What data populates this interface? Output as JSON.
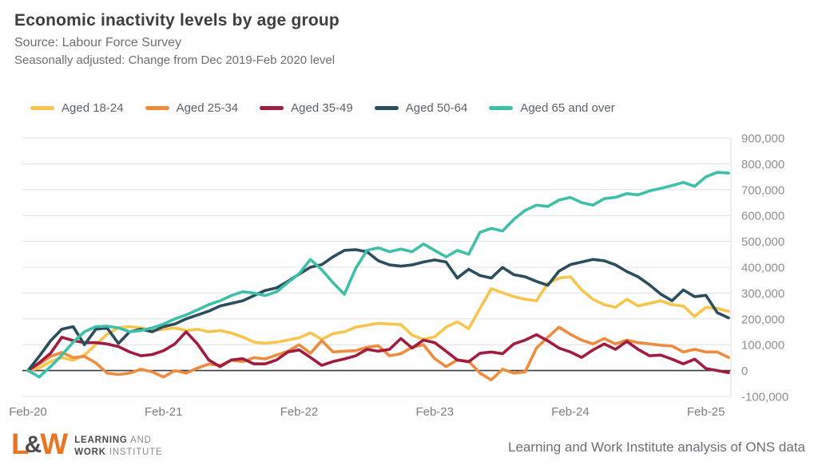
{
  "header": {
    "title": "Economic inactivity levels by age group",
    "source": "Source: Labour Force Survey",
    "note": "Seasonally adjusted: Change from Dec 2019-Feb 2020 level"
  },
  "footer": {
    "logo_l": "L",
    "logo_amp": "&",
    "logo_w": "W",
    "logo_line1_bold": "LEARNING",
    "logo_line1_rest": " AND",
    "logo_line2_bold": "WORK",
    "logo_line2_rest": " INSTITUTE",
    "attribution": "Learning and Work Institute analysis of ONS data"
  },
  "colors": {
    "aged_18_24": "#F7C54D",
    "aged_25_34": "#ED8B3F",
    "aged_35_49": "#A01D40",
    "aged_50_64": "#2B4D5C",
    "aged_65_over": "#3EBFA7",
    "zero_line": "#3b3b3b",
    "grid_line": "#e4e4e4",
    "logo_orange": "#e87424"
  },
  "chart_data": {
    "type": "line",
    "title": "Economic inactivity levels by age group",
    "subtitle": "Seasonally adjusted: Change from Dec 2019-Feb 2020 level",
    "unit": "people (change from Dec 2019-Feb 2020 level)",
    "grid": "horizontal",
    "legend_position": "top",
    "y_axis_side": "right",
    "ylim": [
      -100000,
      900000
    ],
    "y_ticks": [
      {
        "value": 900000,
        "label": "900,000"
      },
      {
        "value": 800000,
        "label": "800,000"
      },
      {
        "value": 700000,
        "label": "700,000"
      },
      {
        "value": 600000,
        "label": "600,000"
      },
      {
        "value": 500000,
        "label": "500,000"
      },
      {
        "value": 400000,
        "label": "400,000"
      },
      {
        "value": 300000,
        "label": "300,000"
      },
      {
        "value": 200000,
        "label": "200,000"
      },
      {
        "value": 100000,
        "label": "100,000"
      },
      {
        "value": 0,
        "label": "0"
      },
      {
        "value": -100000,
        "label": "-100,000"
      }
    ],
    "x": [
      "Feb-20",
      "Mar-20",
      "Apr-20",
      "May-20",
      "Jun-20",
      "Jul-20",
      "Aug-20",
      "Sep-20",
      "Oct-20",
      "Nov-20",
      "Dec-20",
      "Jan-21",
      "Feb-21",
      "Mar-21",
      "Apr-21",
      "May-21",
      "Jun-21",
      "Jul-21",
      "Aug-21",
      "Sep-21",
      "Oct-21",
      "Nov-21",
      "Dec-21",
      "Jan-22",
      "Feb-22",
      "Mar-22",
      "Apr-22",
      "May-22",
      "Jun-22",
      "Jul-22",
      "Aug-22",
      "Sep-22",
      "Oct-22",
      "Nov-22",
      "Dec-22",
      "Jan-23",
      "Feb-23",
      "Mar-23",
      "Apr-23",
      "May-23",
      "Jun-23",
      "Jul-23",
      "Aug-23",
      "Sep-23",
      "Oct-23",
      "Nov-23",
      "Dec-23",
      "Jan-24",
      "Feb-24",
      "Mar-24",
      "Apr-24",
      "May-24",
      "Jun-24",
      "Jul-24",
      "Aug-24",
      "Sep-24",
      "Oct-24",
      "Nov-24",
      "Dec-24",
      "Jan-25",
      "Feb-25",
      "Mar-25",
      "Apr-25"
    ],
    "x_tick_indices": [
      0,
      12,
      24,
      36,
      48,
      60
    ],
    "x_tick_labels": [
      "Feb-20",
      "Feb-21",
      "Feb-22",
      "Feb-23",
      "Feb-24",
      "Feb-25"
    ],
    "series": [
      {
        "name": "Aged 18-24",
        "color": "#F7C54D",
        "values": [
          0,
          10000,
          35000,
          50000,
          40000,
          60000,
          100000,
          140000,
          165000,
          170000,
          165000,
          155000,
          160000,
          165000,
          155000,
          160000,
          150000,
          155000,
          145000,
          130000,
          110000,
          106000,
          110000,
          118000,
          127000,
          146000,
          121000,
          143000,
          150000,
          168000,
          175000,
          183000,
          180000,
          178000,
          137000,
          121000,
          131000,
          168000,
          189000,
          162000,
          240000,
          317000,
          301000,
          286000,
          276000,
          270000,
          337000,
          358000,
          363000,
          312000,
          276000,
          255000,
          245000,
          276000,
          250000,
          260000,
          270000,
          255000,
          250000,
          209000,
          245000,
          240000,
          229000
        ]
      },
      {
        "name": "Aged 25-34",
        "color": "#ED8B3F",
        "values": [
          0,
          25000,
          55000,
          70000,
          50000,
          55000,
          30000,
          -10000,
          -15000,
          -10000,
          5000,
          -5000,
          -25000,
          0,
          -10000,
          10000,
          25000,
          20000,
          40000,
          35000,
          50000,
          45000,
          60000,
          75000,
          100000,
          67000,
          116000,
          72000,
          75000,
          77000,
          90000,
          96000,
          57000,
          65000,
          90000,
          100000,
          46000,
          15000,
          41000,
          36000,
          -10000,
          -36000,
          5000,
          -10000,
          -5000,
          87000,
          129000,
          168000,
          140000,
          118000,
          103000,
          124000,
          103000,
          118000,
          108000,
          103000,
          98000,
          95000,
          72000,
          82000,
          72000,
          72000,
          51000
        ]
      },
      {
        "name": "Aged 35-49",
        "color": "#A01D40",
        "values": [
          0,
          30000,
          67000,
          129000,
          116000,
          108000,
          108000,
          103000,
          93000,
          72000,
          57000,
          62000,
          77000,
          103000,
          150000,
          103000,
          41000,
          15000,
          41000,
          46000,
          26000,
          26000,
          41000,
          72000,
          80000,
          51000,
          20000,
          35000,
          45000,
          57000,
          82000,
          75000,
          82000,
          124000,
          87000,
          118000,
          108000,
          75000,
          41000,
          34000,
          67000,
          72000,
          65000,
          103000,
          118000,
          139000,
          115000,
          87000,
          72000,
          51000,
          80000,
          103000,
          82000,
          113000,
          82000,
          57000,
          60000,
          44000,
          26000,
          44000,
          8000,
          0,
          -8000
        ]
      },
      {
        "name": "Aged 50-64",
        "color": "#2B4D5C",
        "values": [
          0,
          55000,
          115000,
          160000,
          170000,
          100000,
          160000,
          165000,
          105000,
          150000,
          160000,
          150000,
          170000,
          180000,
          200000,
          215000,
          230000,
          250000,
          260000,
          270000,
          290000,
          310000,
          320000,
          345000,
          373000,
          400000,
          410000,
          440000,
          465000,
          468000,
          460000,
          425000,
          409000,
          404000,
          409000,
          420000,
          428000,
          420000,
          358000,
          392000,
          368000,
          358000,
          399000,
          371000,
          363000,
          345000,
          330000,
          385000,
          410000,
          420000,
          430000,
          425000,
          409000,
          383000,
          363000,
          332000,
          296000,
          270000,
          312000,
          286000,
          291000,
          224000,
          204000
        ]
      },
      {
        "name": "Aged 65 and over",
        "color": "#3EBFA7",
        "values": [
          0,
          -25000,
          15000,
          60000,
          110000,
          150000,
          170000,
          172000,
          165000,
          150000,
          155000,
          165000,
          180000,
          200000,
          215000,
          235000,
          255000,
          270000,
          290000,
          305000,
          300000,
          290000,
          305000,
          340000,
          375000,
          430000,
          390000,
          340000,
          295000,
          395000,
          465000,
          475000,
          460000,
          470000,
          460000,
          490000,
          465000,
          440000,
          465000,
          450000,
          535000,
          550000,
          540000,
          585000,
          620000,
          640000,
          635000,
          660000,
          670000,
          650000,
          640000,
          665000,
          670000,
          685000,
          680000,
          695000,
          705000,
          716000,
          728000,
          713000,
          750000,
          767000,
          764000
        ]
      }
    ]
  }
}
